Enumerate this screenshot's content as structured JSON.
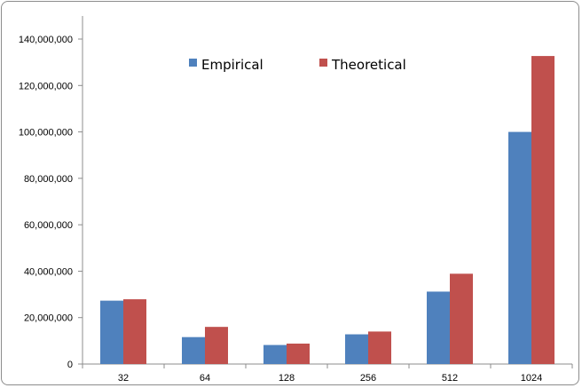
{
  "chart_data": {
    "type": "bar",
    "categories": [
      "32",
      "64",
      "128",
      "256",
      "512",
      "1024"
    ],
    "series": [
      {
        "name": "Empirical",
        "color": "#4f81bd",
        "values": [
          27300000,
          11600000,
          8200000,
          12800000,
          31200000,
          100000000
        ]
      },
      {
        "name": "Theoretical",
        "color": "#c0504d",
        "values": [
          27900000,
          16000000,
          8800000,
          14000000,
          38900000,
          132700000
        ]
      }
    ],
    "y_ticks": [
      "0",
      "20,000,000",
      "40,000,000",
      "60,000,000",
      "80,000,000",
      "100,000,000",
      "120,000,000",
      "140,000,000"
    ],
    "ylim": [
      0,
      140000000
    ],
    "grid": false,
    "legend_position": "top-center"
  }
}
